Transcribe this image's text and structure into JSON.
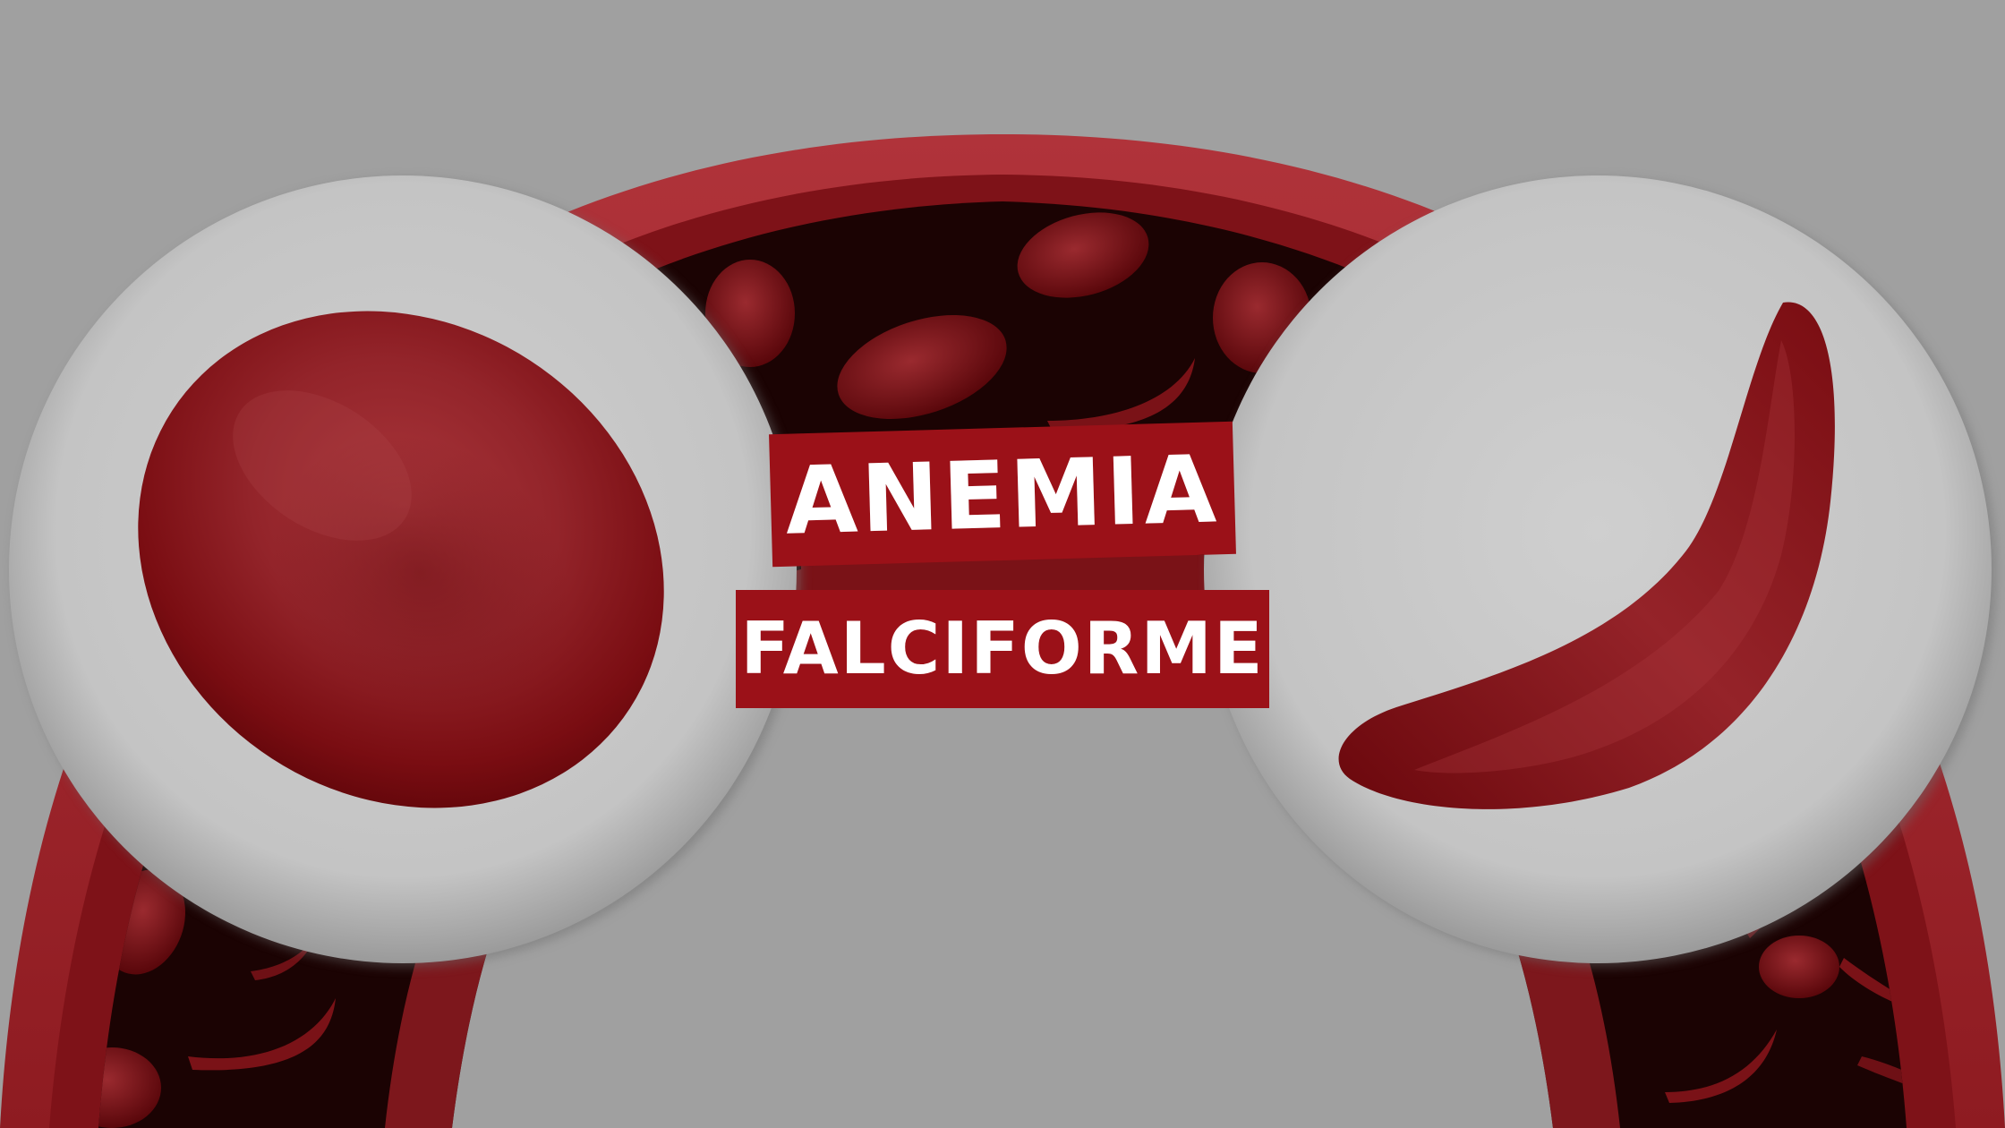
{
  "title": {
    "line1": "ANEMIA",
    "line2": "FALCIFORME"
  },
  "colors": {
    "background": "#a0a0a0",
    "label_background": "#9b1118",
    "label_text": "#ffffff",
    "vessel_wall": "#a3262b",
    "vessel_lumen": "#1a0202",
    "cell": "#8e0f16",
    "lens": "#c7c7c7"
  },
  "illustration": {
    "left_lens": "normal-red-blood-cell",
    "right_lens": "sickle-red-blood-cell",
    "background": "blood-vessel-cross-section"
  }
}
